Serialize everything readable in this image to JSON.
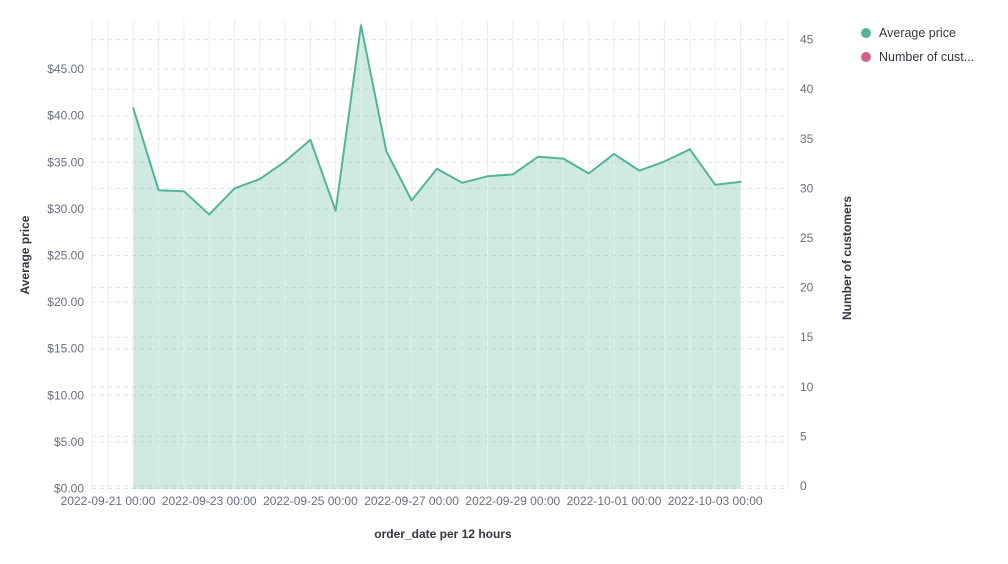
{
  "chart_data": {
    "type": "area",
    "x_axis_title": "order_date per 12 hours",
    "y_left_axis_title": "Average price",
    "y_right_axis_title": "Number of customers",
    "x": [
      "2022-09-21 12:00",
      "2022-09-22 00:00",
      "2022-09-22 12:00",
      "2022-09-23 00:00",
      "2022-09-23 12:00",
      "2022-09-24 00:00",
      "2022-09-24 12:00",
      "2022-09-25 00:00",
      "2022-09-25 12:00",
      "2022-09-26 00:00",
      "2022-09-26 12:00",
      "2022-09-27 00:00",
      "2022-09-27 12:00",
      "2022-09-28 00:00",
      "2022-09-28 12:00",
      "2022-09-29 00:00",
      "2022-09-29 12:00",
      "2022-09-30 00:00",
      "2022-09-30 12:00",
      "2022-10-01 00:00",
      "2022-10-01 12:00",
      "2022-10-02 00:00",
      "2022-10-02 12:00",
      "2022-10-03 00:00",
      "2022-10-03 12:00"
    ],
    "series": [
      {
        "name": "Average price",
        "axis": "left",
        "color": "#54B399",
        "fill": "rgba(84,179,153,0.28)",
        "values": [
          40.8,
          32.0,
          31.9,
          29.4,
          32.2,
          33.2,
          35.1,
          37.4,
          29.8,
          49.7,
          36.2,
          30.9,
          34.3,
          32.8,
          33.5,
          33.7,
          35.6,
          35.4,
          33.8,
          35.9,
          34.1,
          35.1,
          36.4,
          32.6,
          32.9
        ]
      },
      {
        "name": "Number of cust...",
        "axis": "right",
        "color": "#D36086",
        "values": []
      }
    ],
    "x_tick_labels": [
      "2022-09-21 00:00",
      "2022-09-23 00:00",
      "2022-09-25 00:00",
      "2022-09-27 00:00",
      "2022-09-29 00:00",
      "2022-10-01 00:00",
      "2022-10-03 00:00"
    ],
    "y_left_tick_labels": [
      "$0.00",
      "$5.00",
      "$10.00",
      "$15.00",
      "$20.00",
      "$25.00",
      "$30.00",
      "$35.00",
      "$40.00",
      "$45.00"
    ],
    "y_left_tick_values": [
      0,
      5,
      10,
      15,
      20,
      25,
      30,
      35,
      40,
      45
    ],
    "y_right_tick_labels": [
      "0",
      "5",
      "10",
      "15",
      "20",
      "25",
      "30",
      "35",
      "40",
      "45"
    ],
    "y_right_tick_values": [
      0,
      5,
      10,
      15,
      20,
      25,
      30,
      35,
      40,
      45
    ],
    "y_left_range": [
      0,
      50.2
    ],
    "y_right_range": [
      0,
      47
    ],
    "grid": true,
    "legend_position": "top-right"
  },
  "legend": {
    "items": [
      {
        "label": "Average price",
        "color": "#54B399"
      },
      {
        "label": "Number of cust...",
        "color": "#D36086"
      }
    ]
  },
  "colors": {
    "line": "#54B399",
    "area_fill": "rgba(84,179,153,0.28)",
    "secondary": "#D36086",
    "tick_text": "#69707D",
    "title_text": "#343741",
    "grid_vertical": "#E9EDF3",
    "grid_dashed": "#DCE1EA"
  }
}
